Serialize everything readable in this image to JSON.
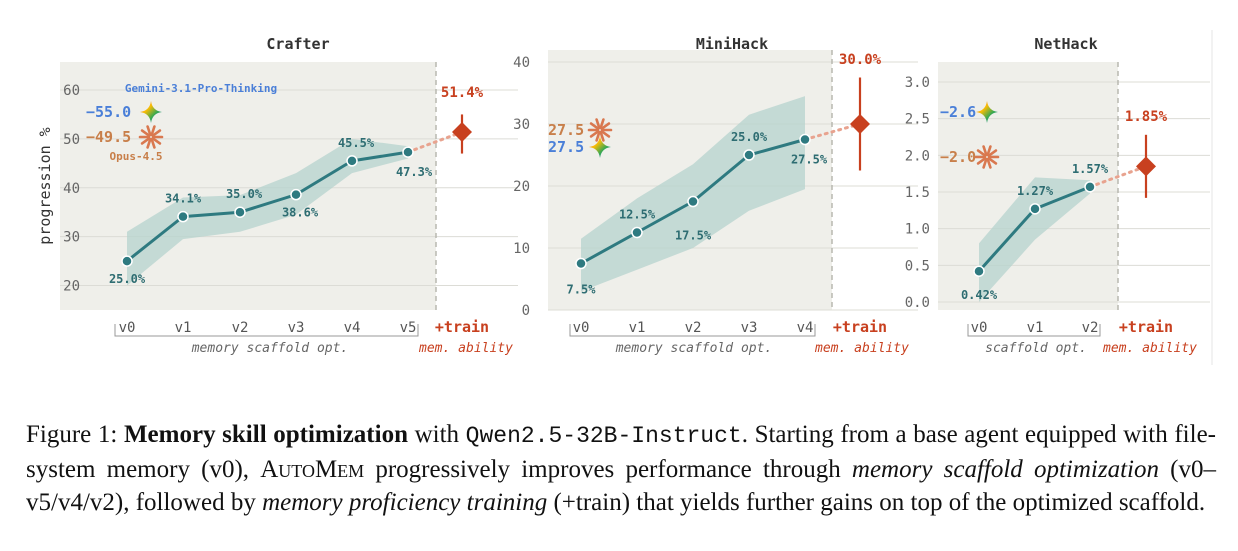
{
  "chart_data": [
    {
      "type": "line",
      "title": "Crafter",
      "ylabel": "progression %",
      "ylim": [
        15,
        66
      ],
      "yticks": [
        20,
        30,
        40,
        50,
        60
      ],
      "categories": [
        "v0",
        "v1",
        "v2",
        "v3",
        "v4",
        "v5"
      ],
      "values": [
        25.0,
        34.1,
        35.0,
        38.6,
        45.5,
        47.3
      ],
      "value_labels": [
        "25.0%",
        "34.1%",
        "35.0%",
        "38.6%",
        "45.5%",
        "47.3%"
      ],
      "band_lower": [
        20.0,
        29.5,
        31.0,
        34.5,
        43.0,
        46.0
      ],
      "band_upper": [
        31.0,
        38.0,
        38.5,
        43.0,
        50.0,
        48.5
      ],
      "train": {
        "label": "+train",
        "value": 51.4,
        "value_label": "51.4%",
        "err_low": 47.0,
        "err_high": 55.0
      },
      "references": [
        {
          "name": "Gemini-3.1-Pro-Thinking",
          "value": 55.0,
          "value_label": "−55.0",
          "color": "#4a7fd8",
          "icon": "gemini-sparkle-icon"
        },
        {
          "name": "Opus-4.5",
          "value": 49.5,
          "value_label": "−49.5",
          "color": "#c87f4a",
          "icon": "claude-asterisk-icon"
        }
      ],
      "xgroup_labels": [
        "memory scaffold opt.",
        "mem. ability"
      ]
    },
    {
      "type": "line",
      "title": "MiniHack",
      "ylabel": "",
      "ylim": [
        0,
        40
      ],
      "yticks": [
        0,
        10,
        20,
        30,
        40
      ],
      "categories": [
        "v0",
        "v1",
        "v2",
        "v3",
        "v4"
      ],
      "values": [
        7.5,
        12.5,
        17.5,
        25.0,
        27.5
      ],
      "value_labels": [
        "7.5%",
        "12.5%",
        "17.5%",
        "25.0%",
        "27.5%"
      ],
      "band_lower": [
        3.0,
        6.5,
        10.0,
        16.0,
        19.5
      ],
      "band_upper": [
        11.5,
        18.0,
        23.5,
        31.5,
        34.5
      ],
      "train": {
        "label": "+train",
        "value": 30.0,
        "value_label": "30.0%",
        "err_low": 22.5,
        "err_high": 37.5
      },
      "references": [
        {
          "name": "",
          "value": 27.5,
          "value_label": "27.5",
          "color": "#c87f4a",
          "icon": "claude-asterisk-icon"
        },
        {
          "name": "",
          "value": 27.5,
          "value_label": "27.5",
          "color": "#4a7fd8",
          "icon": "gemini-sparkle-icon"
        }
      ],
      "xgroup_labels": [
        "memory scaffold opt.",
        "mem. ability"
      ]
    },
    {
      "type": "line",
      "title": "NetHack",
      "ylabel": "",
      "ylim": [
        -0.1,
        3.3
      ],
      "yticks": [
        0.0,
        0.5,
        1.0,
        1.5,
        2.0,
        2.5,
        3.0
      ],
      "ytick_labels": [
        "0.0",
        "0.5",
        "1.0",
        "1.5",
        "2.0",
        "2.5",
        "3.0"
      ],
      "categories": [
        "v0",
        "v1",
        "v2"
      ],
      "values": [
        0.42,
        1.27,
        1.57
      ],
      "value_labels": [
        "0.42%",
        "1.27%",
        "1.57%"
      ],
      "band_lower": [
        0.0,
        0.85,
        1.48
      ],
      "band_upper": [
        0.8,
        1.7,
        1.66
      ],
      "train": {
        "label": "+train",
        "value": 1.85,
        "value_label": "1.85%",
        "err_low": 1.42,
        "err_high": 2.28
      },
      "references": [
        {
          "name": "",
          "value": 2.6,
          "value_label": "−2.6",
          "color": "#4a7fd8",
          "icon": "gemini-sparkle-icon"
        },
        {
          "name": "",
          "value": 2.0,
          "value_label": "−2.0",
          "color": "#c87f4a",
          "icon": "claude-asterisk-icon"
        }
      ],
      "xgroup_labels": [
        "scaffold opt.",
        "mem. ability"
      ]
    }
  ],
  "colors": {
    "line": "#2e7a80",
    "band": "#b5d3ce",
    "panel_bg": "#efefea",
    "train": "#c8401f",
    "train_dotted": "#e8a38f",
    "gemini": "#4a7fd8",
    "opus": "#c87f4a",
    "axis_text": "#555555",
    "title_text": "#333333"
  },
  "caption": {
    "prefix": "Figure 1: ",
    "bold": "Memory skill optimization",
    "t1": " with ",
    "code": "Qwen2.5-32B-Instruct",
    "t2": ". Starting from a base agent equipped with file-system memory (v0), ",
    "smallcaps": "AutoMem",
    "t3": " progressively improves performance through ",
    "italic1": "memory scaffold optimization",
    "t4": " (v0–v5/v4/v2), followed by ",
    "italic2": "memory proficiency training",
    "t5": " (+train) that yields further gains on top of the optimized scaffold."
  }
}
